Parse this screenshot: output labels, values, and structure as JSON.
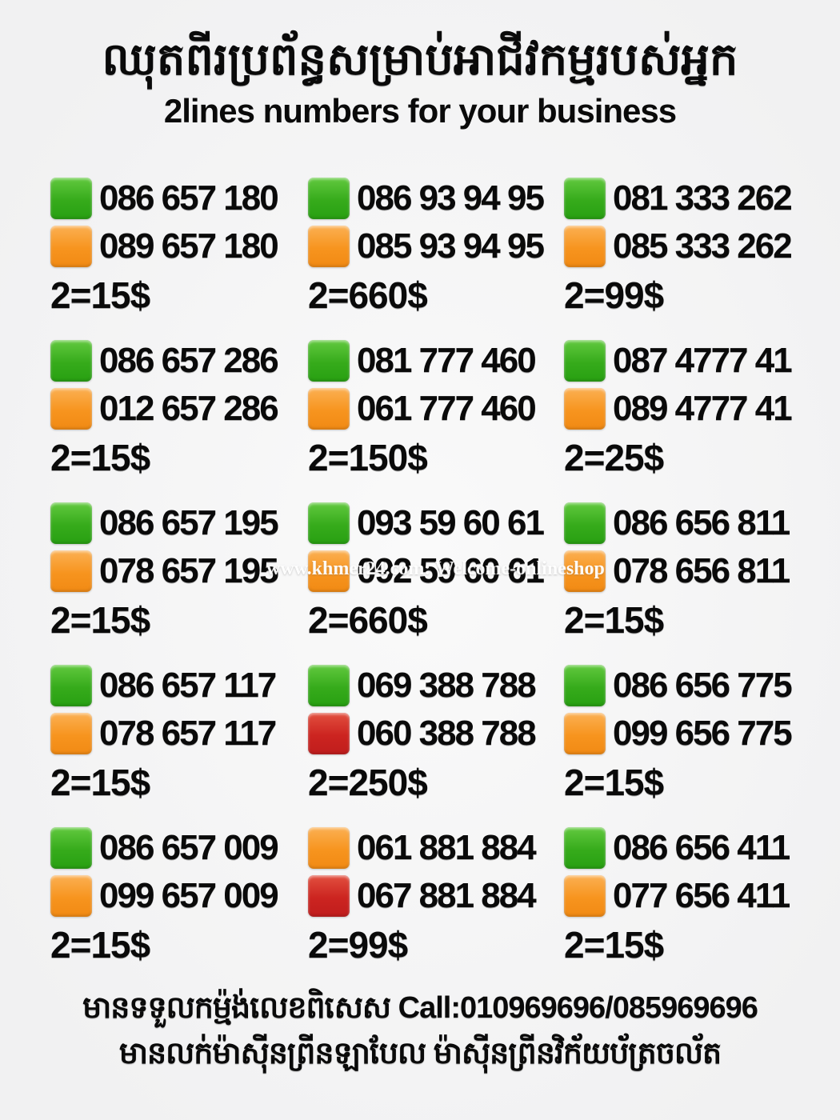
{
  "header": {
    "title_khmer": "ឈុតពីរប្រព័ន្ធសម្រាប់អាជីវកម្មរបស់អ្នក",
    "title_english": "2lines numbers for your business"
  },
  "colors": {
    "green": "#36ab1b",
    "orange": "#f7941e",
    "red": "#cc2420",
    "background": "#f1f1f2"
  },
  "watermark": "www.khmer24.com: Welcome-onlineshop",
  "listings": [
    {
      "line1": {
        "color": "green",
        "number": "086 657 180"
      },
      "line2": {
        "color": "orange",
        "number": "089 657 180"
      },
      "price": "2=15$"
    },
    {
      "line1": {
        "color": "green",
        "number": "086 93 94 95"
      },
      "line2": {
        "color": "orange",
        "number": "085 93 94 95"
      },
      "price": "2=660$"
    },
    {
      "line1": {
        "color": "green",
        "number": "081 333 262"
      },
      "line2": {
        "color": "orange",
        "number": "085 333 262"
      },
      "price": "2=99$"
    },
    {
      "line1": {
        "color": "green",
        "number": "086 657 286"
      },
      "line2": {
        "color": "orange",
        "number": "012 657 286"
      },
      "price": "2=15$"
    },
    {
      "line1": {
        "color": "green",
        "number": "081 777 460"
      },
      "line2": {
        "color": "orange",
        "number": "061 777 460"
      },
      "price": "2=150$"
    },
    {
      "line1": {
        "color": "green",
        "number": "087 4777 41"
      },
      "line2": {
        "color": "orange",
        "number": "089 4777 41"
      },
      "price": "2=25$"
    },
    {
      "line1": {
        "color": "green",
        "number": "086 657 195"
      },
      "line2": {
        "color": "orange",
        "number": "078 657 195"
      },
      "price": "2=15$"
    },
    {
      "line1": {
        "color": "green",
        "number": "093 59 60 61"
      },
      "line2": {
        "color": "orange",
        "number": "092 59 60 61"
      },
      "price": "2=660$"
    },
    {
      "line1": {
        "color": "green",
        "number": "086 656 811"
      },
      "line2": {
        "color": "orange",
        "number": "078 656 811"
      },
      "price": "2=15$"
    },
    {
      "line1": {
        "color": "green",
        "number": "086 657 117"
      },
      "line2": {
        "color": "orange",
        "number": "078 657 117"
      },
      "price": "2=15$"
    },
    {
      "line1": {
        "color": "green",
        "number": "069 388 788"
      },
      "line2": {
        "color": "red",
        "number": "060 388 788"
      },
      "price": "2=250$"
    },
    {
      "line1": {
        "color": "green",
        "number": "086 656 775"
      },
      "line2": {
        "color": "orange",
        "number": "099 656 775"
      },
      "price": "2=15$"
    },
    {
      "line1": {
        "color": "green",
        "number": "086 657 009"
      },
      "line2": {
        "color": "orange",
        "number": "099 657 009"
      },
      "price": "2=15$"
    },
    {
      "line1": {
        "color": "orange",
        "number": "061 881 884"
      },
      "line2": {
        "color": "red",
        "number": "067 881 884"
      },
      "price": "2=99$"
    },
    {
      "line1": {
        "color": "green",
        "number": "086 656 411"
      },
      "line2": {
        "color": "orange",
        "number": "077 656 411"
      },
      "price": "2=15$"
    }
  ],
  "footer": {
    "line1_khmer": "មានទទួលកម្ម៉ង់លេខពិសេស",
    "line1_call": "Call:010969696/085969696",
    "line2_khmer": "មានលក់ម៉ាស៊ីនព្រីនឡាបែល ម៉ាស៊ីនព្រីនវិក័យប័ត្រចល័ត"
  }
}
